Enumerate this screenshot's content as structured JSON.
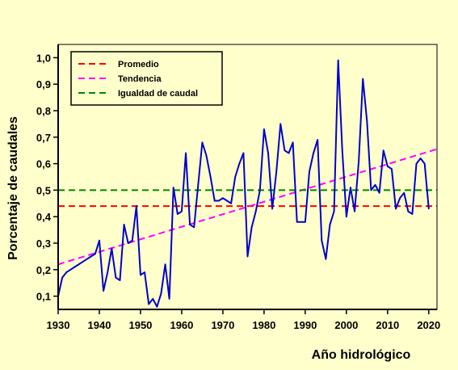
{
  "chart_data": {
    "type": "line",
    "xlabel": "Año hidrológico",
    "ylabel": "Porcentaje de caudales",
    "xlim": [
      1930,
      2022
    ],
    "ylim": [
      0.05,
      1.05
    ],
    "x_ticks": [
      "1930",
      "1940",
      "1950",
      "1960",
      "1970",
      "1980",
      "1990",
      "2000",
      "2010",
      "2020"
    ],
    "y_ticks": [
      "0,1",
      "0,2",
      "0,3",
      "0,4",
      "0,5",
      "0,6",
      "0,7",
      "0,8",
      "0,9",
      "1,0"
    ],
    "grid": false,
    "legend_position": "top-left",
    "series": [
      {
        "color": "#0000CC",
        "x": [
          1930,
          1931,
          1932,
          1933,
          1934,
          1935,
          1936,
          1937,
          1938,
          1939,
          1940,
          1941,
          1942,
          1943,
          1944,
          1945,
          1946,
          1947,
          1948,
          1949,
          1950,
          1951,
          1952,
          1953,
          1954,
          1955,
          1956,
          1957,
          1958,
          1959,
          1960,
          1961,
          1962,
          1963,
          1964,
          1965,
          1966,
          1967,
          1968,
          1969,
          1970,
          1971,
          1972,
          1973,
          1974,
          1975,
          1976,
          1977,
          1978,
          1979,
          1980,
          1981,
          1982,
          1983,
          1984,
          1985,
          1986,
          1987,
          1988,
          1989,
          1990,
          1991,
          1992,
          1993,
          1994,
          1995,
          1996,
          1997,
          1998,
          1999,
          2000,
          2001,
          2002,
          2003,
          2004,
          2005,
          2006,
          2007,
          2008,
          2009,
          2010,
          2011,
          2012,
          2013,
          2014,
          2015,
          2016,
          2017,
          2018,
          2019,
          2020
        ],
        "values": [
          0.1,
          0.17,
          0.19,
          0.2,
          0.21,
          0.22,
          0.23,
          0.24,
          0.25,
          0.26,
          0.31,
          0.12,
          0.19,
          0.28,
          0.17,
          0.16,
          0.37,
          0.3,
          0.31,
          0.44,
          0.18,
          0.19,
          0.07,
          0.09,
          0.06,
          0.11,
          0.22,
          0.09,
          0.51,
          0.41,
          0.42,
          0.64,
          0.37,
          0.36,
          0.52,
          0.68,
          0.63,
          0.55,
          0.46,
          0.46,
          0.47,
          0.46,
          0.45,
          0.55,
          0.6,
          0.64,
          0.25,
          0.36,
          0.42,
          0.5,
          0.73,
          0.64,
          0.43,
          0.57,
          0.75,
          0.65,
          0.64,
          0.68,
          0.38,
          0.38,
          0.38,
          0.57,
          0.64,
          0.69,
          0.31,
          0.24,
          0.37,
          0.42,
          0.99,
          0.65,
          0.4,
          0.51,
          0.42,
          0.61,
          0.92,
          0.76,
          0.5,
          0.52,
          0.49,
          0.65,
          0.59,
          0.58,
          0.43,
          0.47,
          0.49,
          0.42,
          0.41,
          0.6,
          0.62,
          0.6,
          0.43
        ]
      }
    ],
    "reference_lines": [
      {
        "name": "Promedio",
        "type": "horizontal",
        "y": 0.44,
        "color": "#FF0000",
        "dash": true
      },
      {
        "name": "Tendencia",
        "type": "trend",
        "x": [
          1930,
          2022
        ],
        "y": [
          0.22,
          0.655
        ],
        "color": "#FF00FF",
        "dash": true
      },
      {
        "name": "Igualdad de caudal",
        "type": "horizontal",
        "y": 0.5,
        "color": "#008800",
        "dash": true
      }
    ]
  }
}
